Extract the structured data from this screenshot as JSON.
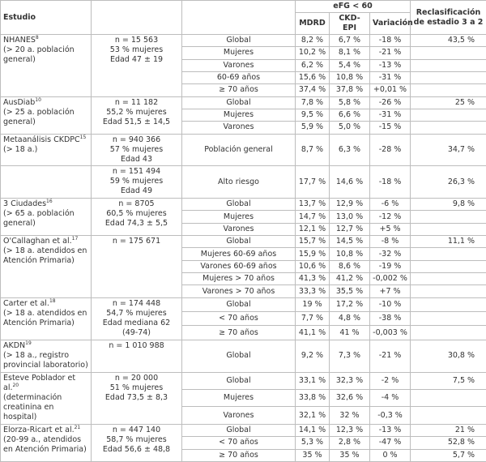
{
  "header": {
    "study": "Estudio",
    "efg": "eFG < 60",
    "mdrd": "MDRD",
    "ckd_epi": "CKD-EPI",
    "variacion": "Variación",
    "reclas": "Reclasificación de estadio 3 a 2"
  },
  "studies": [
    {
      "name": "NHANES",
      "ref": "8",
      "detail": "(> 20 a. población general)",
      "blocks": [
        {
          "n": [
            "n = 15 563",
            "53 % mujeres",
            "Edad 47 ± 19"
          ],
          "rows": [
            [
              "Global",
              "8,2 %",
              "6,7 %",
              "-18 %",
              "43,5 %"
            ],
            [
              "Mujeres",
              "10,2 %",
              "8,1 %",
              "-21 %",
              null
            ],
            [
              "Varones",
              "6,2 %",
              "5,4 %",
              "-13 %",
              null
            ],
            [
              "60-69 años",
              "15,6 %",
              "10,8 %",
              "-31 %",
              null
            ],
            [
              "≥ 70 años",
              "37,4 %",
              "37,8 %",
              "+0,01 %",
              null
            ]
          ]
        }
      ]
    },
    {
      "name": "AusDiab",
      "ref": "10",
      "detail": "(> 25 a. población general)",
      "blocks": [
        {
          "n": [
            "n = 11 182",
            "55,2 % mujeres",
            "Edad 51,5 ± 14,5"
          ],
          "rows": [
            [
              "Global",
              "7,8 %",
              "5,8 %",
              "-26 %",
              "25 %"
            ],
            [
              "Mujeres",
              "9,5 %",
              "6,6 %",
              "-31 %",
              null
            ],
            [
              "Varones",
              "5,9 %",
              "5,0 %",
              "-15 %",
              null
            ]
          ]
        }
      ]
    },
    {
      "name": "Metaanálisis CKDPC",
      "ref": "15",
      "detail": "(> 18 a.)",
      "blocks": [
        {
          "n": [
            "n = 940 366",
            "57 % mujeres",
            "Edad 43"
          ],
          "rows": [
            [
              "Población general",
              "8,7 %",
              "6,3 %",
              "-28 %",
              "34,7 %"
            ]
          ]
        },
        {
          "n": [
            "n = 151 494",
            "59 % mujeres",
            "Edad 49"
          ],
          "rows": [
            [
              "Alto riesgo",
              "17,7 %",
              "14,6 %",
              "-18 %",
              "26,3 %"
            ]
          ]
        }
      ]
    },
    {
      "name": "3 Ciudades",
      "ref": "16",
      "detail": "(> 65 a. población general)",
      "blocks": [
        {
          "n": [
            "n = 8705",
            "60,5 % mujeres",
            "Edad 74,3 ± 5,5"
          ],
          "rows": [
            [
              "Global",
              "13,7 %",
              "12,9 %",
              "-6 %",
              "9,8 %"
            ],
            [
              "Mujeres",
              "14,7 %",
              "13,0 %",
              "-12 %",
              null
            ],
            [
              "Varones",
              "12,1 %",
              "12,7 %",
              "+5 %",
              null
            ]
          ]
        }
      ]
    },
    {
      "name": "O'Callaghan et al.",
      "ref": "17",
      "detail": "(> 18 a. atendidos en Atención Primaria)",
      "blocks": [
        {
          "n": [
            "n = 175 671"
          ],
          "rows": [
            [
              "Global",
              "15,7 %",
              "14,5 %",
              "-8 %",
              "11,1 %"
            ],
            [
              "Mujeres 60-69 años",
              "15,9 %",
              "10,8 %",
              "-32 %",
              null
            ],
            [
              "Varones 60-69 años",
              "10,6 %",
              "8,6 %",
              "-19 %",
              null
            ],
            [
              "Mujeres > 70 años",
              "41,3 %",
              "41,2 %",
              "-0,002 %",
              null
            ],
            [
              "Varones > 70 años",
              "33,3 %",
              "35,5 %",
              "+7 %",
              null
            ]
          ]
        }
      ]
    },
    {
      "name": "Carter et al.",
      "ref": "18",
      "detail": "(> 18 a. atendidos en Atención Primaria)",
      "blocks": [
        {
          "n": [
            "n = 174 448",
            "54,7 % mujeres",
            "Edad mediana 62 (49-74)"
          ],
          "rows": [
            [
              "Global",
              "19 %",
              "17,2 %",
              "-10 %",
              null
            ],
            [
              "< 70 años",
              "7,7 %",
              "4,8 %",
              "-38 %",
              null
            ],
            [
              "≥ 70 años",
              "41,1 %",
              "41 %",
              "-0,003 %",
              null
            ]
          ]
        }
      ]
    },
    {
      "name": "AKDN",
      "ref": "19",
      "detail": "(> 18 a., registro provincial laboratorio)",
      "blocks": [
        {
          "n": [
            "n = 1 010 988"
          ],
          "rows": [
            [
              "Global",
              "9,2 %",
              "7,3 %",
              "-21 %",
              "30,8 %"
            ]
          ]
        }
      ]
    },
    {
      "name": "Esteve Poblador et al.",
      "ref": "20",
      "detail": "(determinación creatinina en hospital)",
      "blocks": [
        {
          "n": [
            "n = 20 000",
            "51 % mujeres",
            "Edad 73,5 ± 8,3"
          ],
          "rows": [
            [
              "Global",
              "33,1 %",
              "32,3 %",
              "-2 %",
              "7,5 %"
            ],
            [
              "Mujeres",
              "33,8 %",
              "32,6 %",
              "-4 %",
              null
            ],
            [
              "Varones",
              "32,1 %",
              "32 %",
              "-0,3 %",
              null
            ]
          ]
        }
      ]
    },
    {
      "name": "Elorza-Ricart et al.",
      "ref": "21",
      "detail": "(20-99 a., atendidos en Atención Primaria)",
      "blocks": [
        {
          "n": [
            "n = 447 140",
            "58,7 % mujeres",
            "Edad 56,6 ± 48,8"
          ],
          "rows": [
            [
              "Global",
              "14,1 %",
              "12,3 %",
              "-13 %",
              "21 %"
            ],
            [
              "< 70 años",
              "5,3 %",
              "2,8 %",
              "-47 %",
              "52,8 %"
            ],
            [
              "≥ 70 años",
              "35 %",
              "35 %",
              "0 %",
              "5,7 %"
            ]
          ]
        }
      ]
    }
  ]
}
